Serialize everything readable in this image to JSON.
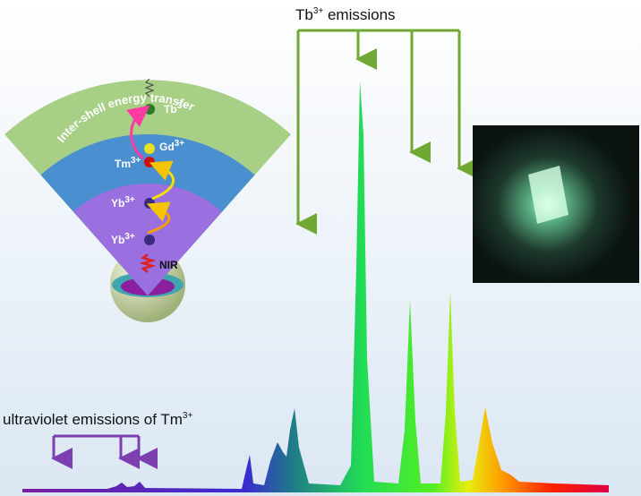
{
  "top_label": {
    "text": "Tb",
    "sup": "3+",
    "after": " emissions"
  },
  "uv_label": {
    "text": "ultraviolet emissions of Tm",
    "sup": "3+"
  },
  "arc_label": "Inter-shell energy transfer",
  "ions": [
    {
      "text": "Tb",
      "sup": "3+"
    },
    {
      "text": "Gd",
      "sup": "3+"
    },
    {
      "text": "Tm",
      "sup": "3+"
    },
    {
      "text": "Yb",
      "sup": "3+"
    },
    {
      "text": "Yb",
      "sup": "3+"
    }
  ],
  "excitation": "NIR"
}
